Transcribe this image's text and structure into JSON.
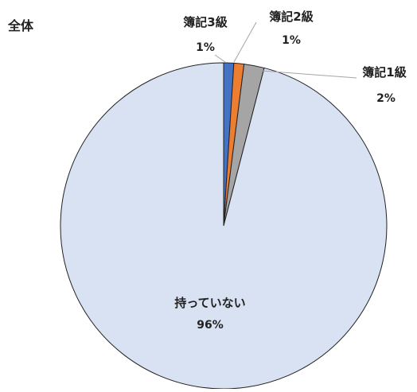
{
  "chart_data": {
    "type": "pie",
    "title": "全体",
    "categories": [
      "簿記3級",
      "簿記2級",
      "簿記1級",
      "持っていない"
    ],
    "values": [
      1,
      1,
      2,
      96
    ],
    "percent_labels": [
      "1%",
      "1%",
      "2%",
      "96%"
    ],
    "colors": [
      "#4472c4",
      "#ed7d31",
      "#a5a5a5",
      "#d9e2f3"
    ],
    "start_angle": "12 o'clock",
    "direction": "clockwise",
    "legend": "none",
    "label_style": "category name and percent, leader lines for small slices"
  }
}
